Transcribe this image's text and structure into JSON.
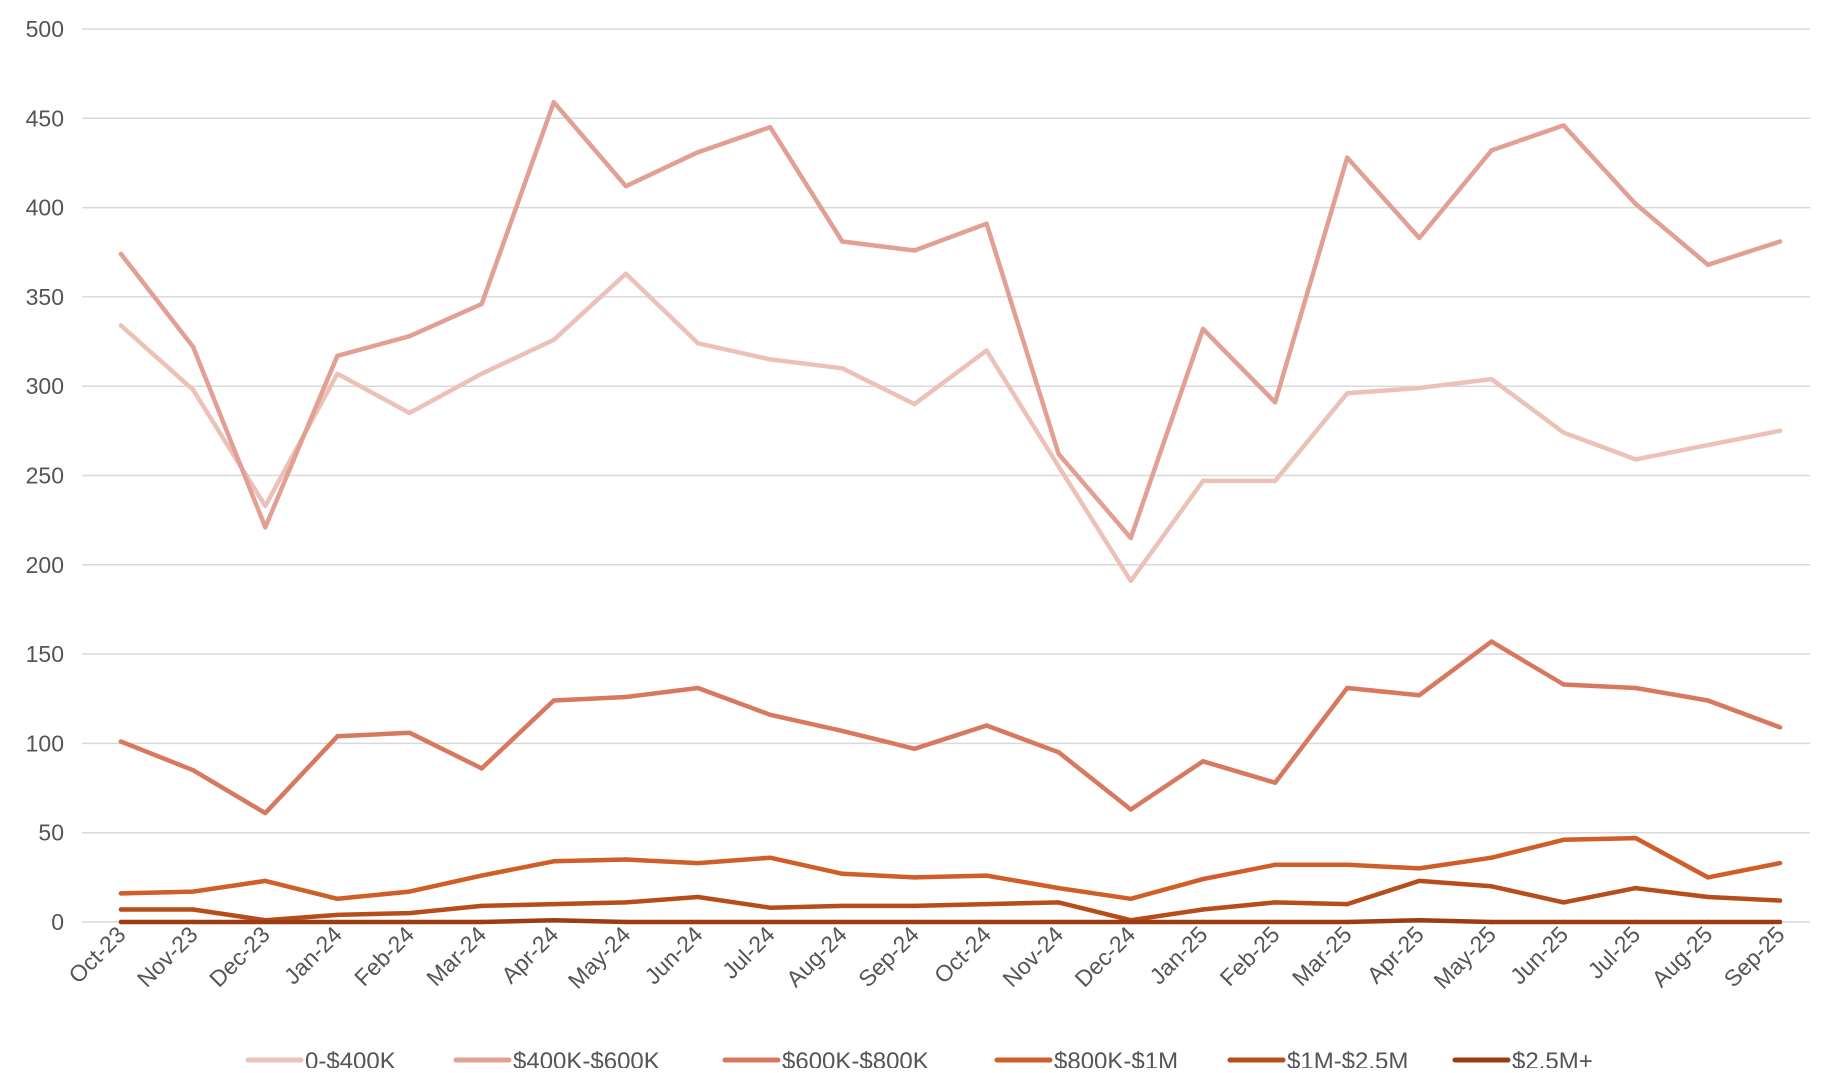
{
  "chart_data": {
    "type": "line",
    "title": "",
    "xlabel": "",
    "ylabel": "",
    "ylim": [
      0,
      500
    ],
    "yticks": [
      0,
      50,
      100,
      150,
      200,
      250,
      300,
      350,
      400,
      450,
      500
    ],
    "grid": true,
    "legend_position": "bottom",
    "categories": [
      "Oct-23",
      "Nov-23",
      "Dec-23",
      "Jan-24",
      "Feb-24",
      "Mar-24",
      "Apr-24",
      "May-24",
      "Jun-24",
      "Jul-24",
      "Aug-24",
      "Sep-24",
      "Oct-24",
      "Nov-24",
      "Dec-24",
      "Jan-25",
      "Feb-25",
      "Mar-25",
      "Apr-25",
      "May-25",
      "Jun-25",
      "Jul-25",
      "Aug-25",
      "Sep-25"
    ],
    "series": [
      {
        "name": "0-$400K",
        "color": "#ecc2b8",
        "values": [
          334,
          298,
          233,
          307,
          285,
          307,
          326,
          363,
          324,
          315,
          310,
          290,
          320,
          255,
          191,
          247,
          247,
          296,
          299,
          304,
          274,
          259,
          267,
          275
        ]
      },
      {
        "name": "$400K-$600K",
        "color": "#e2a094",
        "values": [
          374,
          322,
          221,
          317,
          328,
          346,
          459,
          412,
          431,
          445,
          381,
          376,
          391,
          262,
          215,
          332,
          291,
          428,
          383,
          432,
          446,
          402,
          368,
          381
        ]
      },
      {
        "name": "$600K-$800K",
        "color": "#d7785f",
        "values": [
          101,
          85,
          61,
          104,
          106,
          86,
          124,
          126,
          131,
          116,
          107,
          97,
          110,
          95,
          63,
          90,
          78,
          131,
          127,
          157,
          133,
          131,
          124,
          109
        ]
      },
      {
        "name": "$800K-$1M",
        "color": "#cf5e28",
        "values": [
          16,
          17,
          23,
          13,
          17,
          26,
          34,
          35,
          33,
          36,
          27,
          25,
          26,
          19,
          13,
          24,
          32,
          32,
          30,
          36,
          46,
          47,
          25,
          33
        ]
      },
      {
        "name": "$1M-$2.5M",
        "color": "#b84d1c",
        "values": [
          7,
          7,
          1,
          4,
          5,
          9,
          10,
          11,
          14,
          8,
          9,
          9,
          10,
          11,
          1,
          7,
          11,
          10,
          23,
          20,
          11,
          19,
          14,
          12
        ]
      },
      {
        "name": "$2.5M+",
        "color": "#9c3c12",
        "values": [
          0,
          0,
          0,
          0,
          0,
          0,
          1,
          0,
          0,
          0,
          0,
          0,
          0,
          0,
          0,
          0,
          0,
          0,
          1,
          0,
          0,
          0,
          0,
          0
        ]
      }
    ]
  }
}
